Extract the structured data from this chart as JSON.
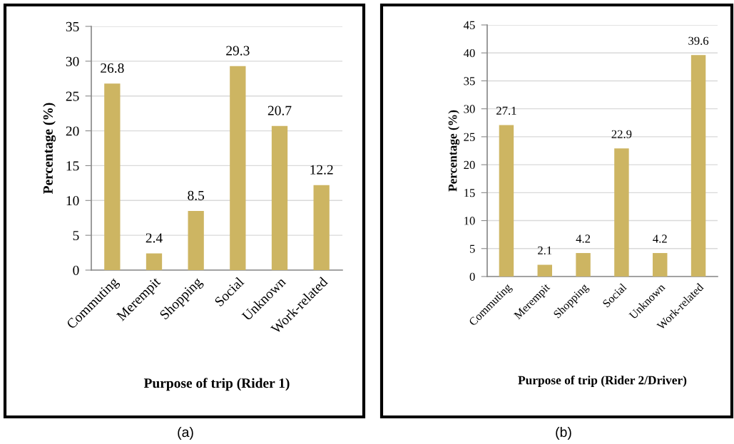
{
  "chart_data": [
    {
      "type": "bar",
      "categories": [
        "Commuting",
        "Merempit",
        "Shopping",
        "Social",
        "Unknown",
        "Work-related"
      ],
      "values": [
        26.8,
        2.4,
        8.5,
        29.3,
        20.7,
        12.2
      ],
      "color": "#cdb562",
      "ylim": [
        0,
        35
      ],
      "yticks": [
        0,
        5,
        10,
        15,
        20,
        25,
        30,
        35
      ],
      "xlabel": "Purpose of trip (Rider 1)",
      "ylabel": "Percentage (%)",
      "grid": "y",
      "data_labels": true,
      "annotations": [
        "(a)"
      ]
    },
    {
      "type": "bar",
      "categories": [
        "Commuting",
        "Merempit",
        "Shopping",
        "Social",
        "Unknown",
        "Work-related"
      ],
      "values": [
        27.1,
        2.1,
        4.2,
        22.9,
        4.2,
        39.6
      ],
      "color": "#cdb562",
      "ylim": [
        0,
        45
      ],
      "yticks": [
        0,
        5,
        10,
        15,
        20,
        25,
        30,
        35,
        40,
        45
      ],
      "xlabel": "Purpose of trip (Rider 2/Driver)",
      "ylabel": "Percentage (%)",
      "grid": "y",
      "data_labels": true,
      "annotations": [
        "(b)"
      ]
    }
  ]
}
